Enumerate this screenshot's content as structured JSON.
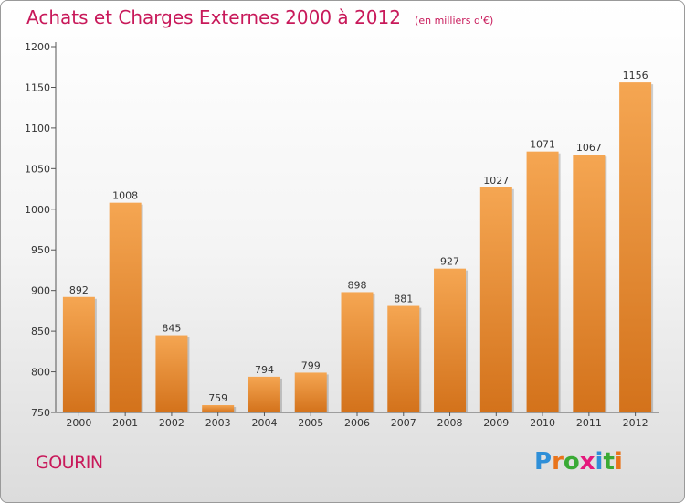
{
  "header": {
    "title": "Achats et Charges Externes 2000 à 2012",
    "unit": "(en milliers d'€)"
  },
  "commune": "GOURIN",
  "logo": {
    "text": "Proxiti",
    "letters": [
      "P",
      "r",
      "o",
      "x",
      "i",
      "t",
      "i"
    ],
    "letter_colors": [
      "#2f8fd8",
      "#e9741b",
      "#3aaa35",
      "#e5197d",
      "#2f8fd8",
      "#3aaa35",
      "#e9741b"
    ]
  },
  "colors": {
    "bar_top": "#f5a652",
    "bar_bottom": "#d3721b",
    "title": "#c8195a",
    "axis": "#555555"
  },
  "chart_data": {
    "type": "bar",
    "categories": [
      "2000",
      "2001",
      "2002",
      "2003",
      "2004",
      "2005",
      "2006",
      "2007",
      "2008",
      "2009",
      "2010",
      "2011",
      "2012"
    ],
    "values": [
      892,
      1008,
      845,
      759,
      794,
      799,
      898,
      881,
      927,
      1027,
      1071,
      1067,
      1156
    ],
    "ylim": [
      750,
      1200
    ],
    "yticks": [
      750,
      800,
      850,
      900,
      950,
      1000,
      1050,
      1100,
      1150,
      1200
    ],
    "grid": false
  }
}
